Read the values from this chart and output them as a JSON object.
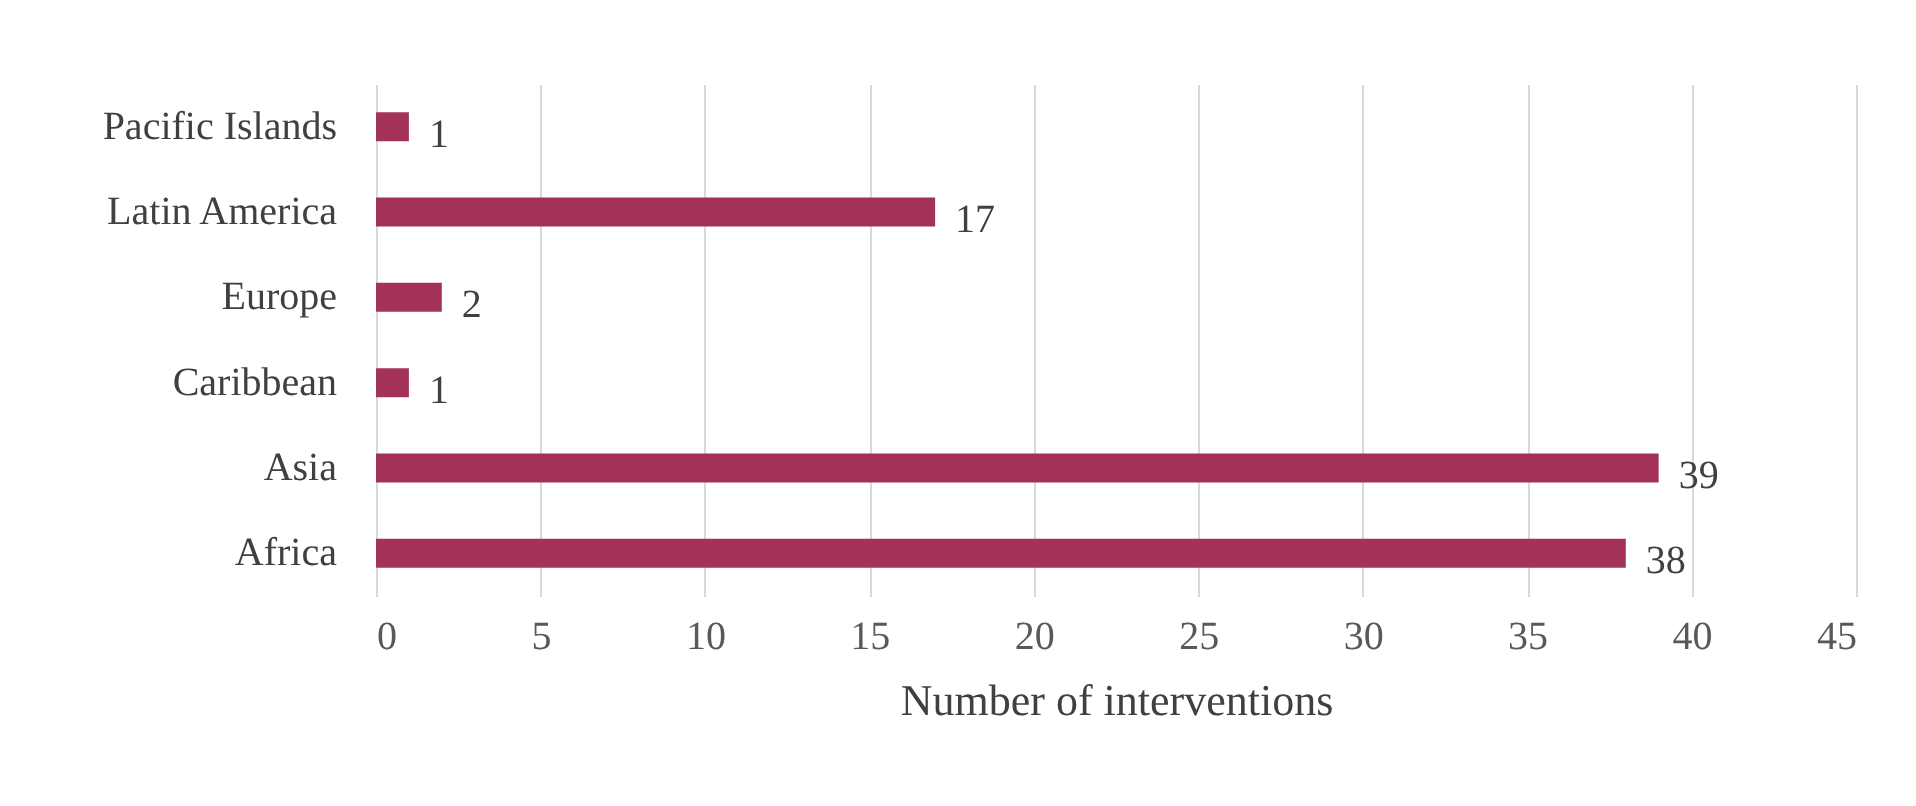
{
  "chart_data": {
    "type": "bar",
    "orientation": "horizontal",
    "xlabel": "Number of interventions",
    "categories": [
      "Pacific Islands",
      "Latin America",
      "Europe",
      "Caribbean",
      "Asia",
      "Africa"
    ],
    "values": [
      1,
      17,
      2,
      1,
      39,
      38
    ],
    "color": "#a3325a",
    "xlim": [
      0,
      45
    ],
    "xticks": [
      0,
      5,
      10,
      15,
      20,
      25,
      30,
      35,
      40,
      45
    ],
    "grid": "x",
    "data_labels": true
  }
}
